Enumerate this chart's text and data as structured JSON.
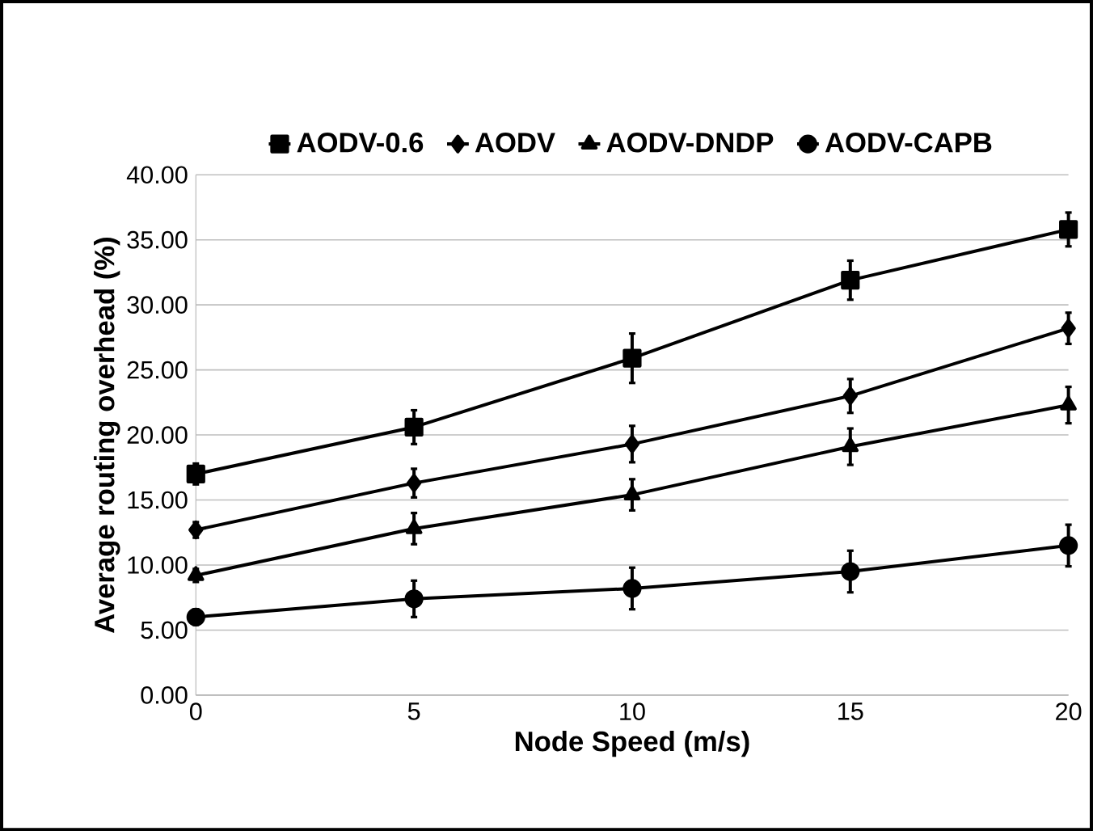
{
  "chart_data": {
    "type": "line",
    "xlabel": "Node Speed (m/s)",
    "ylabel": "Average routing overhead (%)",
    "x": [
      0,
      5,
      10,
      15,
      20
    ],
    "series": [
      {
        "name": "AODV-0.6",
        "color": "#000000",
        "marker": "square",
        "values": [
          17.0,
          20.6,
          25.9,
          31.9,
          35.8
        ],
        "errors": [
          0.8,
          1.3,
          1.9,
          1.5,
          1.3
        ]
      },
      {
        "name": "AODV",
        "color": "#000000",
        "marker": "diamond",
        "values": [
          12.7,
          16.3,
          19.3,
          23.0,
          28.2
        ],
        "errors": [
          0.6,
          1.1,
          1.4,
          1.3,
          1.2
        ]
      },
      {
        "name": "AODV-DNDP",
        "color": "#000000",
        "marker": "triangle",
        "values": [
          9.2,
          12.8,
          15.4,
          19.1,
          22.3
        ],
        "errors": [
          0.5,
          1.2,
          1.2,
          1.4,
          1.4
        ]
      },
      {
        "name": "AODV-CAPB",
        "color": "#000000",
        "marker": "circle",
        "values": [
          6.0,
          7.4,
          8.2,
          9.5,
          11.5
        ],
        "errors": [
          0.6,
          1.4,
          1.6,
          1.6,
          1.6
        ]
      }
    ],
    "xlim": [
      0,
      20
    ],
    "xticks": [
      0,
      5,
      10,
      15,
      20
    ],
    "ylim": [
      0,
      40
    ],
    "yticks": [
      {
        "value": 0,
        "label": "0.00"
      },
      {
        "value": 5,
        "label": "5.00"
      },
      {
        "value": 10,
        "label": "10.00"
      },
      {
        "value": 15,
        "label": "15.00"
      },
      {
        "value": 20,
        "label": "20.00"
      },
      {
        "value": 25,
        "label": "25.00"
      },
      {
        "value": 30,
        "label": "30.00"
      },
      {
        "value": 35,
        "label": "35.00"
      },
      {
        "value": 40,
        "label": "40.00"
      }
    ],
    "grid": "y",
    "legend": "top",
    "line_style": "solid"
  }
}
